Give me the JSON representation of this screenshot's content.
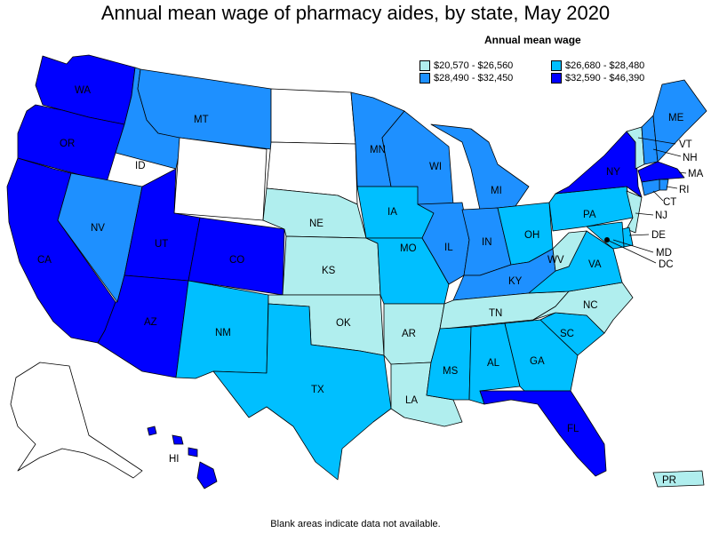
{
  "title": "Annual mean wage of pharmacy aides, by state, May 2020",
  "legend": {
    "title": "Annual mean wage",
    "items": [
      {
        "label": "$20,570 - $26,560",
        "color": "#b0eeee"
      },
      {
        "label": "$26,680 - $28,480",
        "color": "#00bfff"
      },
      {
        "label": "$28,490 - $32,450",
        "color": "#1e90ff"
      },
      {
        "label": "$32,590 - $46,390",
        "color": "#0000ff"
      }
    ]
  },
  "footnote": "Blank areas indicate data not available.",
  "states": {
    "WA": "#0000ff",
    "OR": "#0000ff",
    "CA": "#0000ff",
    "ID": "#1e90ff",
    "NV": "#1e90ff",
    "MT": "#1e90ff",
    "WY": "#ffffff",
    "UT": "#0000ff",
    "CO": "#0000ff",
    "AZ": "#0000ff",
    "NM": "#00bfff",
    "ND": "#ffffff",
    "SD": "#ffffff",
    "NE": "#b0eeee",
    "KS": "#b0eeee",
    "OK": "#b0eeee",
    "TX": "#00bfff",
    "MN": "#1e90ff",
    "IA": "#00bfff",
    "MO": "#00bfff",
    "AR": "#b0eeee",
    "LA": "#b0eeee",
    "WI": "#1e90ff",
    "IL": "#1e90ff",
    "MI": "#1e90ff",
    "IN": "#1e90ff",
    "OH": "#00bfff",
    "KY": "#1e90ff",
    "TN": "#b0eeee",
    "MS": "#00bfff",
    "AL": "#00bfff",
    "GA": "#00bfff",
    "FL": "#0000ff",
    "SC": "#00bfff",
    "NC": "#b0eeee",
    "VA": "#00bfff",
    "WV": "#b0eeee",
    "PA": "#00bfff",
    "NY": "#0000ff",
    "VT": "#b0eeee",
    "NH": "#1e90ff",
    "ME": "#1e90ff",
    "MA": "#0000ff",
    "RI": "#1e90ff",
    "CT": "#1e90ff",
    "NJ": "#b0eeee",
    "DE": "#00bfff",
    "MD": "#00bfff",
    "DC": "#1e90ff",
    "AK": "#ffffff",
    "HI": "#0000ff",
    "PR": "#b0eeee"
  },
  "labels": {
    "WA": "WA",
    "OR": "OR",
    "CA": "CA",
    "ID": "ID",
    "NV": "NV",
    "MT": "MT",
    "UT": "UT",
    "CO": "CO",
    "AZ": "AZ",
    "NM": "NM",
    "NE": "NE",
    "KS": "KS",
    "OK": "OK",
    "TX": "TX",
    "MN": "MN",
    "IA": "IA",
    "MO": "MO",
    "AR": "AR",
    "LA": "LA",
    "WI": "WI",
    "IL": "IL",
    "MI": "MI",
    "IN": "IN",
    "OH": "OH",
    "KY": "KY",
    "TN": "TN",
    "MS": "MS",
    "AL": "AL",
    "GA": "GA",
    "FL": "FL",
    "SC": "SC",
    "NC": "NC",
    "VA": "VA",
    "WV": "WV",
    "PA": "PA",
    "NY": "NY",
    "VT": "VT",
    "NH": "NH",
    "ME": "ME",
    "MA": "MA",
    "RI": "RI",
    "CT": "CT",
    "NJ": "NJ",
    "DE": "DE",
    "MD": "MD",
    "DC": "DC",
    "HI": "HI",
    "PR": "PR"
  }
}
